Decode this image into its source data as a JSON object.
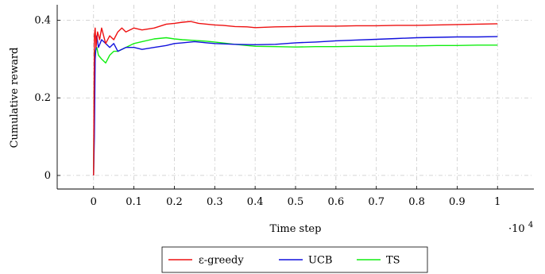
{
  "chart_data": {
    "type": "line",
    "xlabel": "Time step",
    "ylabel": "Cumulative reward",
    "x_scale_label": "·10",
    "x_scale_exponent": "4",
    "xlim": [
      -0.09,
      1.09
    ],
    "ylim": [
      -0.035,
      0.44
    ],
    "xticks": [
      0,
      0.1,
      0.2,
      0.3,
      0.4,
      0.5,
      0.6,
      0.7,
      0.8,
      0.9,
      1
    ],
    "xtick_labels": [
      "0",
      "0.1",
      "0.2",
      "0.3",
      "0.4",
      "0.5",
      "0.6",
      "0.7",
      "0.8",
      "0.9",
      "1"
    ],
    "yticks": [
      0,
      0.2,
      0.4
    ],
    "ytick_labels": [
      "0",
      "0.2",
      "0.4"
    ],
    "grid": true,
    "legend_position": "below-center",
    "series": [
      {
        "name": "ε-greedy",
        "color": "#ee1111",
        "x": [
          0,
          0.002,
          0.004,
          0.006,
          0.01,
          0.015,
          0.02,
          0.03,
          0.04,
          0.05,
          0.06,
          0.07,
          0.08,
          0.1,
          0.12,
          0.15,
          0.18,
          0.2,
          0.22,
          0.24,
          0.26,
          0.28,
          0.3,
          0.32,
          0.35,
          0.38,
          0.4,
          0.45,
          0.5,
          0.55,
          0.6,
          0.65,
          0.7,
          0.75,
          0.8,
          0.85,
          0.9,
          0.95,
          1.0
        ],
        "y": [
          0.0,
          0.36,
          0.38,
          0.33,
          0.37,
          0.35,
          0.38,
          0.34,
          0.36,
          0.35,
          0.37,
          0.38,
          0.37,
          0.38,
          0.375,
          0.38,
          0.39,
          0.392,
          0.395,
          0.397,
          0.392,
          0.39,
          0.388,
          0.387,
          0.384,
          0.383,
          0.381,
          0.383,
          0.384,
          0.385,
          0.385,
          0.386,
          0.386,
          0.387,
          0.387,
          0.388,
          0.389,
          0.39,
          0.391
        ]
      },
      {
        "name": "UCB",
        "color": "#1111dd",
        "x": [
          0,
          0.002,
          0.004,
          0.008,
          0.012,
          0.02,
          0.03,
          0.04,
          0.05,
          0.06,
          0.08,
          0.1,
          0.12,
          0.15,
          0.18,
          0.2,
          0.22,
          0.25,
          0.28,
          0.3,
          0.35,
          0.4,
          0.45,
          0.5,
          0.55,
          0.6,
          0.65,
          0.7,
          0.75,
          0.8,
          0.85,
          0.9,
          0.95,
          1.0
        ],
        "y": [
          0.0,
          0.1,
          0.3,
          0.36,
          0.33,
          0.35,
          0.34,
          0.33,
          0.34,
          0.32,
          0.33,
          0.33,
          0.325,
          0.33,
          0.335,
          0.34,
          0.342,
          0.345,
          0.342,
          0.34,
          0.338,
          0.337,
          0.338,
          0.342,
          0.344,
          0.347,
          0.349,
          0.351,
          0.353,
          0.355,
          0.356,
          0.357,
          0.357,
          0.358
        ]
      },
      {
        "name": "TS",
        "color": "#11ee11",
        "x": [
          0,
          0.002,
          0.004,
          0.008,
          0.012,
          0.02,
          0.03,
          0.04,
          0.05,
          0.06,
          0.08,
          0.1,
          0.12,
          0.15,
          0.18,
          0.2,
          0.22,
          0.25,
          0.28,
          0.3,
          0.35,
          0.4,
          0.45,
          0.5,
          0.55,
          0.6,
          0.65,
          0.7,
          0.75,
          0.8,
          0.85,
          0.9,
          0.95,
          1.0
        ],
        "y": [
          0.0,
          0.3,
          0.32,
          0.33,
          0.31,
          0.3,
          0.29,
          0.31,
          0.32,
          0.32,
          0.33,
          0.34,
          0.345,
          0.352,
          0.355,
          0.352,
          0.35,
          0.348,
          0.346,
          0.344,
          0.338,
          0.333,
          0.332,
          0.331,
          0.332,
          0.332,
          0.333,
          0.333,
          0.334,
          0.334,
          0.335,
          0.335,
          0.336,
          0.336
        ]
      }
    ]
  }
}
